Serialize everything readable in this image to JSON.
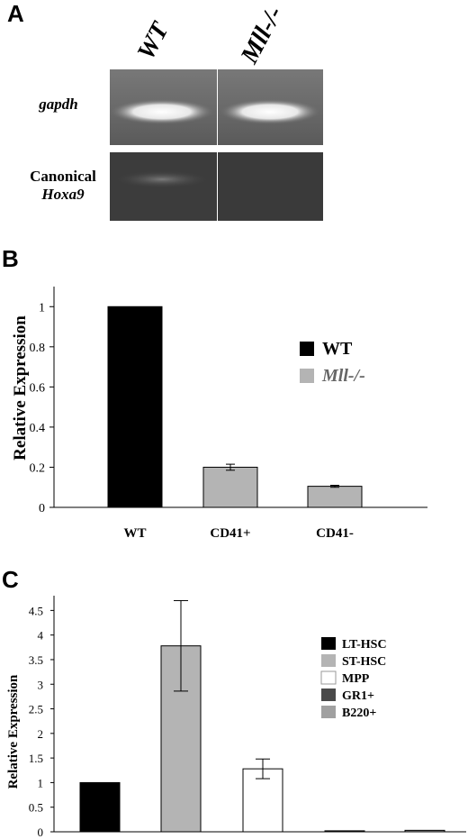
{
  "panel_a": {
    "letter": "A",
    "lanes": [
      "WT",
      "Mll-/-"
    ],
    "rows": [
      {
        "label": "gapdh",
        "italic": true,
        "label2": ""
      },
      {
        "label": "Canonical",
        "italic": false,
        "label2": "Hoxa9"
      }
    ],
    "band_intensity": [
      [
        1.0,
        1.0
      ],
      [
        0.5,
        0.0
      ]
    ]
  },
  "chart_data": [
    {
      "panel": "B",
      "type": "bar",
      "ylabel": "Relative Expression",
      "ylim": [
        0,
        1.1
      ],
      "yticks": [
        "0",
        "0.2",
        "0.4",
        "0.6",
        "0.8",
        "1"
      ],
      "categories": [
        "WT",
        "CD41+",
        "CD41-"
      ],
      "values": [
        1.0,
        0.2,
        0.105
      ],
      "errors": [
        0,
        0.015,
        0.005
      ],
      "colors": [
        "#000000",
        "#b4b4b4",
        "#b4b4b4"
      ],
      "legend": [
        {
          "name": "WT",
          "color": "#000000",
          "italic": false
        },
        {
          "name": "Mll-/-",
          "color": "#b4b4b4",
          "italic": true
        }
      ],
      "legend_position": "upper-right"
    },
    {
      "panel": "C",
      "type": "bar",
      "ylabel": "Relative Expression",
      "ylim": [
        0,
        4.8
      ],
      "yticks": [
        "0",
        "0.5",
        "1",
        "1.5",
        "2",
        "2.5",
        "3",
        "3.5",
        "4",
        "4.5"
      ],
      "categories": [
        "LT-HSC",
        "ST-HSC",
        "MPP",
        "GR1+",
        "B220+"
      ],
      "values": [
        1.0,
        3.78,
        1.28,
        0.02,
        0.03
      ],
      "errors": [
        0,
        0.92,
        0.2,
        0,
        0
      ],
      "colors": [
        "#000000",
        "#b4b4b4",
        "#ffffff",
        "#4a4a4a",
        "#a0a0a0"
      ],
      "legend_position": "right"
    }
  ]
}
